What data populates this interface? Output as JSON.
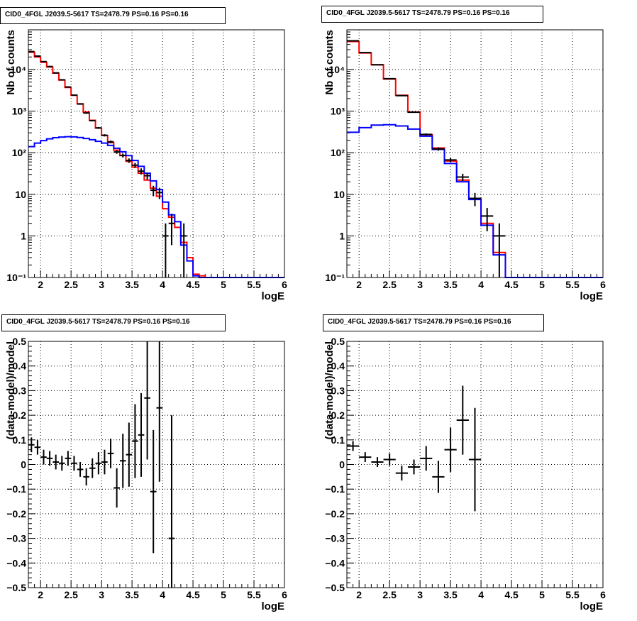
{
  "canvas": {
    "background": "#ffffff"
  },
  "colors": {
    "data": "#000000",
    "total_model": "#ff0000",
    "source_model": "#0000ff",
    "grid": "#000000"
  },
  "pads": [
    {
      "title": "CID0_4FGL J2039.5-5617 TS=2478.79 PS=0.16 PS=0.16"
    },
    {
      "title": "CID0_4FGL J2039.5-5617 TS=2478.79 PS=0.16 PS=0.16"
    },
    {
      "title": "CID0_4FGL J2039.5-5617 TS=2478.79 PS=0.16 PS=0.16"
    },
    {
      "title": "CID0_4FGL J2039.5-5617 TS=2478.79 PS=0.16 PS=0.16"
    }
  ],
  "chart_data": [
    {
      "type": "line",
      "title": "CID0_4FGL J2039.5-5617 TS=2478.79 PS=0.16 PS=0.16",
      "xlabel": "logE",
      "ylabel": "Nb of counts",
      "xlim": [
        1.8,
        6.0
      ],
      "ylim": [
        0.1,
        90000
      ],
      "yscale": "log",
      "grid": true,
      "x_ticks": [
        2,
        2.5,
        3,
        3.5,
        4,
        4.5,
        5,
        5.5,
        6
      ],
      "x_tick_labels": [
        "2",
        "2.5",
        "3",
        "3.5",
        "4",
        "4.5",
        "5",
        "5.5",
        "6"
      ],
      "y_ticks": [
        0.1,
        1,
        10,
        100,
        1000,
        10000
      ],
      "y_tick_labels": [
        "10⁻¹",
        "1",
        "10",
        "10²",
        "10³",
        "10⁴"
      ],
      "bin_edges": [
        1.8,
        1.9,
        2.0,
        2.1,
        2.2,
        2.3,
        2.4,
        2.5,
        2.6,
        2.7,
        2.8,
        2.9,
        3.0,
        3.1,
        3.2,
        3.3,
        3.4,
        3.5,
        3.6,
        3.7,
        3.8,
        3.9,
        4.0,
        4.1,
        4.2,
        4.3,
        4.4,
        4.5,
        4.6,
        4.7,
        4.8,
        4.9,
        5.0,
        5.1,
        5.2,
        5.3,
        5.4,
        5.5,
        5.6,
        5.7,
        5.8,
        5.9,
        6.0
      ],
      "series": [
        {
          "role": "total_model",
          "values": [
            26000,
            20000,
            15000,
            11500,
            8200,
            5600,
            3700,
            2400,
            1500,
            950,
            600,
            390,
            260,
            175,
            115,
            85,
            62,
            45,
            32,
            22,
            14,
            9,
            4.5,
            2.8,
            1.6,
            0.7,
            0.3,
            0.12,
            0.11,
            0.1,
            0.1,
            0.1,
            0.1,
            0.1,
            0.1,
            0.1,
            0.1,
            0.1,
            0.1,
            0.1,
            0.1,
            0.1
          ]
        },
        {
          "role": "source_model",
          "values": [
            140,
            170,
            195,
            215,
            230,
            238,
            242,
            240,
            232,
            220,
            205,
            188,
            170,
            150,
            128,
            105,
            85,
            65,
            47,
            32,
            21,
            13,
            6.5,
            3.2,
            2.2,
            0.6,
            0.25,
            0.11,
            0.1,
            0.1,
            0.1,
            0.1,
            0.1,
            0.1,
            0.1,
            0.1,
            0.1,
            0.1,
            0.1,
            0.1,
            0.1,
            0.1
          ]
        },
        {
          "role": "data",
          "points": [
            {
              "x": 1.85,
              "y": 27000,
              "e": 165
            },
            {
              "x": 1.95,
              "y": 21000,
              "e": 145
            },
            {
              "x": 2.05,
              "y": 15500,
              "e": 125
            },
            {
              "x": 2.15,
              "y": 11800,
              "e": 110
            },
            {
              "x": 2.25,
              "y": 8300,
              "e": 91
            },
            {
              "x": 2.35,
              "y": 5650,
              "e": 75
            },
            {
              "x": 2.45,
              "y": 3800,
              "e": 62
            },
            {
              "x": 2.55,
              "y": 2420,
              "e": 49
            },
            {
              "x": 2.65,
              "y": 1480,
              "e": 38
            },
            {
              "x": 2.75,
              "y": 900,
              "e": 30
            },
            {
              "x": 2.85,
              "y": 590,
              "e": 24
            },
            {
              "x": 2.95,
              "y": 395,
              "e": 20
            },
            {
              "x": 3.05,
              "y": 262,
              "e": 16
            },
            {
              "x": 3.15,
              "y": 183,
              "e": 13.5
            },
            {
              "x": 3.25,
              "y": 104,
              "e": 10
            },
            {
              "x": 3.35,
              "y": 86,
              "e": 9.3
            },
            {
              "x": 3.45,
              "y": 65,
              "e": 8
            },
            {
              "x": 3.55,
              "y": 50,
              "e": 7
            },
            {
              "x": 3.65,
              "y": 36,
              "e": 6
            },
            {
              "x": 3.75,
              "y": 28,
              "e": 5.3
            },
            {
              "x": 3.85,
              "y": 12.5,
              "e": 3.5
            },
            {
              "x": 3.95,
              "y": 11,
              "e": 3.3
            },
            {
              "x": 4.05,
              "y": 1,
              "e": 1
            },
            {
              "x": 4.15,
              "y": 2,
              "e": 1.4
            },
            {
              "x": 4.25,
              "y": 0.1,
              "e": 0
            },
            {
              "x": 4.35,
              "y": 1,
              "e": 1
            }
          ]
        }
      ]
    },
    {
      "type": "line",
      "title": "CID0_4FGL J2039.5-5617 TS=2478.79 PS=0.16 PS=0.16",
      "xlabel": "logE",
      "ylabel": "Nb of counts",
      "xlim": [
        1.8,
        6.0
      ],
      "ylim": [
        0.1,
        90000
      ],
      "yscale": "log",
      "grid": true,
      "x_ticks": [
        2,
        2.5,
        3,
        3.5,
        4,
        4.5,
        5,
        5.5,
        6
      ],
      "x_tick_labels": [
        "2",
        "2.5",
        "3",
        "3.5",
        "4",
        "4.5",
        "5",
        "5.5",
        "6"
      ],
      "y_ticks": [
        0.1,
        1,
        10,
        100,
        1000,
        10000
      ],
      "y_tick_labels": [
        "10⁻¹",
        "1",
        "10",
        "10²",
        "10³",
        "10⁴"
      ],
      "bin_edges": [
        1.8,
        2.0,
        2.2,
        2.4,
        2.6,
        2.8,
        3.0,
        3.2,
        3.4,
        3.6,
        3.8,
        4.0,
        4.2,
        4.4,
        4.6,
        4.8,
        5.0,
        5.2,
        5.4,
        5.6,
        5.8,
        6.0
      ],
      "series": [
        {
          "role": "total_model",
          "values": [
            47000,
            25000,
            13000,
            5900,
            2400,
            950,
            270,
            130,
            63,
            22,
            8,
            2,
            0.4,
            0.1,
            0.1,
            0.1,
            0.1,
            0.1,
            0.1,
            0.1,
            0.1
          ]
        },
        {
          "role": "source_model",
          "values": [
            310,
            400,
            460,
            470,
            440,
            370,
            250,
            120,
            55,
            20,
            7.5,
            1.8,
            0.35,
            0.1,
            0.1,
            0.1,
            0.1,
            0.1,
            0.1,
            0.1,
            0.1
          ]
        },
        {
          "role": "data",
          "points": [
            {
              "x": 1.9,
              "y": 49000,
              "e": 220
            },
            {
              "x": 2.1,
              "y": 25500,
              "e": 160
            },
            {
              "x": 2.3,
              "y": 13000,
              "e": 115
            },
            {
              "x": 2.5,
              "y": 6000,
              "e": 77
            },
            {
              "x": 2.7,
              "y": 2350,
              "e": 48
            },
            {
              "x": 2.9,
              "y": 940,
              "e": 31
            },
            {
              "x": 3.1,
              "y": 275,
              "e": 17
            },
            {
              "x": 3.3,
              "y": 123,
              "e": 11
            },
            {
              "x": 3.5,
              "y": 67,
              "e": 8.2
            },
            {
              "x": 3.7,
              "y": 26,
              "e": 5.1
            },
            {
              "x": 3.9,
              "y": 8,
              "e": 2.8
            },
            {
              "x": 4.1,
              "y": 3,
              "e": 1.7
            },
            {
              "x": 4.3,
              "y": 1,
              "e": 1
            }
          ]
        }
      ]
    },
    {
      "type": "scatter",
      "title": "CID0_4FGL J2039.5-5617 TS=2478.79 PS=0.16 PS=0.16",
      "xlabel": "logE",
      "ylabel": "(data-model)/model",
      "xlim": [
        1.8,
        6.0
      ],
      "ylim": [
        -0.5,
        0.5
      ],
      "grid": true,
      "x_ticks": [
        2,
        2.5,
        3,
        3.5,
        4,
        4.5,
        5,
        5.5,
        6
      ],
      "x_tick_labels": [
        "2",
        "2.5",
        "3",
        "3.5",
        "4",
        "4.5",
        "5",
        "5.5",
        "6"
      ],
      "y_ticks": [
        -0.5,
        -0.4,
        -0.3,
        -0.2,
        -0.1,
        0,
        0.1,
        0.2,
        0.3,
        0.4,
        0.5
      ],
      "y_tick_labels": [
        "−0.5",
        "−0.4",
        "−0.3",
        "−0.2",
        "−0.1",
        "0",
        "0.1",
        "0.2",
        "0.3",
        "0.4",
        "0.5"
      ],
      "bin_width": 0.1,
      "series": [
        {
          "role": "data",
          "points": [
            {
              "x": 1.85,
              "y": 0.08,
              "e": 0.03
            },
            {
              "x": 1.95,
              "y": 0.07,
              "e": 0.03
            },
            {
              "x": 2.05,
              "y": 0.03,
              "e": 0.03
            },
            {
              "x": 2.15,
              "y": 0.025,
              "e": 0.03
            },
            {
              "x": 2.25,
              "y": 0.01,
              "e": 0.03
            },
            {
              "x": 2.35,
              "y": 0.005,
              "e": 0.03
            },
            {
              "x": 2.45,
              "y": 0.025,
              "e": 0.03
            },
            {
              "x": 2.55,
              "y": 0.005,
              "e": 0.03
            },
            {
              "x": 2.65,
              "y": -0.02,
              "e": 0.03
            },
            {
              "x": 2.75,
              "y": -0.05,
              "e": 0.035
            },
            {
              "x": 2.85,
              "y": -0.015,
              "e": 0.04
            },
            {
              "x": 2.95,
              "y": 0.005,
              "e": 0.045
            },
            {
              "x": 3.05,
              "y": 0.01,
              "e": 0.05
            },
            {
              "x": 3.15,
              "y": 0.045,
              "e": 0.06
            },
            {
              "x": 3.25,
              "y": -0.095,
              "e": 0.08
            },
            {
              "x": 3.35,
              "y": 0.015,
              "e": 0.11
            },
            {
              "x": 3.45,
              "y": 0.04,
              "e": 0.13
            },
            {
              "x": 3.55,
              "y": 0.095,
              "e": 0.15
            },
            {
              "x": 3.65,
              "y": 0.12,
              "e": 0.17
            },
            {
              "x": 3.75,
              "y": 0.27,
              "e": 0.25
            },
            {
              "x": 3.85,
              "y": -0.11,
              "e": 0.25
            },
            {
              "x": 3.95,
              "y": 0.23,
              "e": 0.3
            },
            {
              "x": 4.15,
              "y": -0.3,
              "e": 0.5
            }
          ]
        }
      ]
    },
    {
      "type": "scatter",
      "title": "CID0_4FGL J2039.5-5617 TS=2478.79 PS=0.16 PS=0.16",
      "xlabel": "logE",
      "ylabel": "(data-model)/model",
      "xlim": [
        1.8,
        6.0
      ],
      "ylim": [
        -0.5,
        0.5
      ],
      "grid": true,
      "x_ticks": [
        2,
        2.5,
        3,
        3.5,
        4,
        4.5,
        5,
        5.5,
        6
      ],
      "x_tick_labels": [
        "2",
        "2.5",
        "3",
        "3.5",
        "4",
        "4.5",
        "5",
        "5.5",
        "6"
      ],
      "y_ticks": [
        -0.5,
        -0.4,
        -0.3,
        -0.2,
        -0.1,
        0,
        0.1,
        0.2,
        0.3,
        0.4,
        0.5
      ],
      "y_tick_labels": [
        "−0.5",
        "−0.4",
        "−0.3",
        "−0.2",
        "−0.1",
        "0",
        "0.1",
        "0.2",
        "0.3",
        "0.4",
        "0.5"
      ],
      "bin_width": 0.2,
      "series": [
        {
          "role": "data",
          "points": [
            {
              "x": 1.9,
              "y": 0.075,
              "e": 0.02
            },
            {
              "x": 2.1,
              "y": 0.03,
              "e": 0.02
            },
            {
              "x": 2.3,
              "y": 0.01,
              "e": 0.02
            },
            {
              "x": 2.5,
              "y": 0.02,
              "e": 0.025
            },
            {
              "x": 2.7,
              "y": -0.035,
              "e": 0.03
            },
            {
              "x": 2.9,
              "y": -0.01,
              "e": 0.03
            },
            {
              "x": 3.1,
              "y": 0.025,
              "e": 0.05
            },
            {
              "x": 3.3,
              "y": -0.05,
              "e": 0.065
            },
            {
              "x": 3.5,
              "y": 0.06,
              "e": 0.09
            },
            {
              "x": 3.7,
              "y": 0.18,
              "e": 0.14
            },
            {
              "x": 3.9,
              "y": 0.02,
              "e": 0.21
            }
          ]
        }
      ]
    }
  ]
}
